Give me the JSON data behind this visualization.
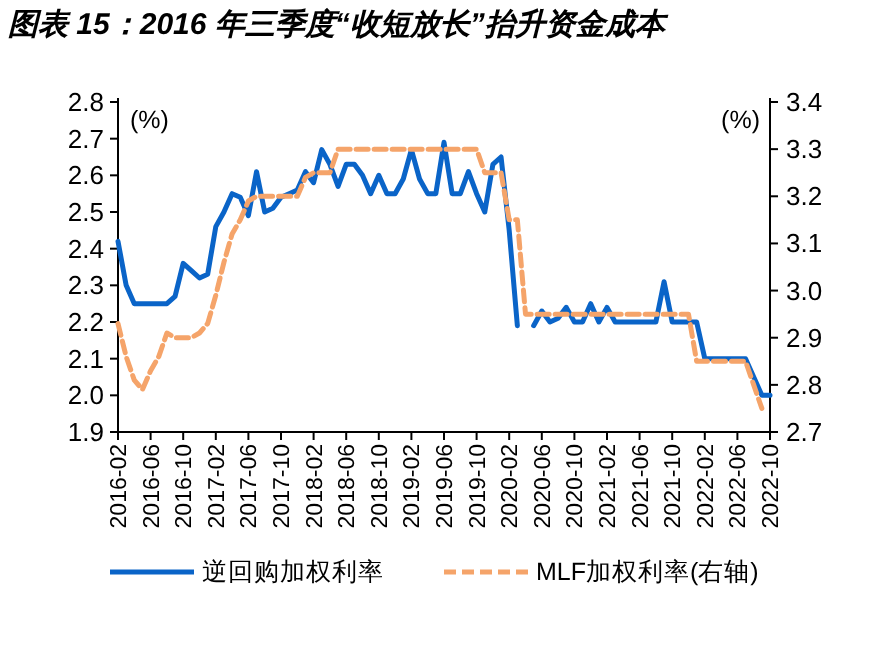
{
  "chart_data": {
    "type": "line",
    "title": "图表 15：2016 年三季度“收短放长”抬升资金成本",
    "ylabel": "(%)",
    "y2label": "(%)",
    "xlim": [
      "2016-02",
      "2022-10"
    ],
    "xticks": [
      "2016-02",
      "2016-06",
      "2016-10",
      "2017-02",
      "2017-06",
      "2017-10",
      "2018-02",
      "2018-06",
      "2018-10",
      "2019-02",
      "2019-06",
      "2019-10",
      "2020-02",
      "2020-06",
      "2020-10",
      "2021-02",
      "2021-06",
      "2021-10",
      "2022-02",
      "2022-06",
      "2022-10"
    ],
    "ylim": [
      1.9,
      2.8
    ],
    "yticks": [
      1.9,
      {
        "value": 2.0,
        "label": "2.0"
      },
      2.1,
      2.2,
      2.3,
      2.4,
      2.5,
      2.6,
      2.7,
      2.8
    ],
    "y2lim": [
      2.7,
      3.4
    ],
    "y2ticks": [
      2.7,
      2.8,
      2.9,
      {
        "value": 3.0,
        "label": "3.0"
      },
      3.1,
      3.2,
      3.3,
      3.4
    ],
    "grid": false,
    "legend": "bottom",
    "marker": "none",
    "x": [
      "2016-02",
      "2016-03",
      "2016-04",
      "2016-05",
      "2016-06",
      "2016-07",
      "2016-08",
      "2016-09",
      "2016-10",
      "2016-11",
      "2016-12",
      "2017-01",
      "2017-02",
      "2017-03",
      "2017-04",
      "2017-05",
      "2017-06",
      "2017-07",
      "2017-08",
      "2017-09",
      "2017-10",
      "2017-11",
      "2017-12",
      "2018-01",
      "2018-02",
      "2018-03",
      "2018-04",
      "2018-05",
      "2018-06",
      "2018-07",
      "2018-08",
      "2018-09",
      "2018-10",
      "2018-11",
      "2018-12",
      "2019-01",
      "2019-02",
      "2019-03",
      "2019-04",
      "2019-05",
      "2019-06",
      "2019-07",
      "2019-08",
      "2019-09",
      "2019-10",
      "2019-11",
      "2019-12",
      "2020-01",
      "2020-02",
      "2020-03",
      "2020-04",
      "2020-05",
      "2020-06",
      "2020-07",
      "2020-08",
      "2020-09",
      "2020-10",
      "2020-11",
      "2020-12",
      "2021-01",
      "2021-02",
      "2021-03",
      "2021-04",
      "2021-05",
      "2021-06",
      "2021-07",
      "2021-08",
      "2021-09",
      "2021-10",
      "2021-11",
      "2021-12",
      "2022-01",
      "2022-02",
      "2022-03",
      "2022-04",
      "2022-05",
      "2022-06",
      "2022-07",
      "2022-08",
      "2022-09",
      "2022-10"
    ],
    "series": [
      {
        "name": "逆回购加权利率",
        "color": "#0a64c8",
        "line_style": "solid",
        "values": [
          2.42,
          2.3,
          2.25,
          2.25,
          2.25,
          2.25,
          2.25,
          2.27,
          2.36,
          2.34,
          2.32,
          2.33,
          2.46,
          2.5,
          2.55,
          2.54,
          2.49,
          2.61,
          2.5,
          2.51,
          2.54,
          2.55,
          2.56,
          2.61,
          2.58,
          2.67,
          2.63,
          2.57,
          2.63,
          2.63,
          2.6,
          2.55,
          2.6,
          2.55,
          2.55,
          2.59,
          2.67,
          2.59,
          2.55,
          2.55,
          2.69,
          2.55,
          2.55,
          2.61,
          2.55,
          2.5,
          2.63,
          2.65,
          2.45,
          2.19,
          null,
          2.19,
          2.23,
          2.2,
          2.21,
          2.24,
          2.2,
          2.2,
          2.25,
          2.2,
          2.24,
          2.2,
          2.2,
          2.2,
          2.2,
          2.2,
          2.2,
          2.31,
          2.2,
          2.2,
          2.2,
          2.2,
          2.1,
          2.1,
          2.1,
          2.1,
          2.1,
          2.1,
          2.05,
          2.0,
          2.0
        ]
      },
      {
        "name": "MLF加权利率(右轴)",
        "color": "#f5a46a",
        "line_style": "dashed",
        "axis": "y2",
        "values": [
          2.93,
          2.86,
          2.81,
          2.79,
          2.83,
          2.86,
          2.91,
          2.9,
          2.9,
          2.9,
          2.91,
          2.93,
          2.99,
          3.06,
          3.12,
          3.15,
          3.19,
          3.2,
          3.2,
          3.2,
          3.2,
          3.2,
          3.2,
          3.24,
          3.25,
          3.25,
          3.25,
          3.3,
          3.3,
          3.3,
          3.3,
          3.3,
          3.3,
          3.3,
          3.3,
          3.3,
          3.3,
          3.3,
          3.3,
          3.3,
          3.3,
          3.3,
          3.3,
          3.3,
          3.3,
          3.25,
          3.25,
          3.25,
          3.15,
          3.15,
          2.95,
          2.95,
          2.95,
          2.95,
          2.95,
          2.95,
          2.95,
          2.95,
          2.95,
          2.95,
          2.95,
          2.95,
          2.95,
          2.95,
          2.95,
          2.95,
          2.95,
          2.95,
          2.95,
          2.95,
          2.95,
          2.85,
          2.85,
          2.85,
          2.85,
          2.85,
          2.85,
          2.85,
          2.8,
          2.75,
          null
        ]
      }
    ]
  }
}
